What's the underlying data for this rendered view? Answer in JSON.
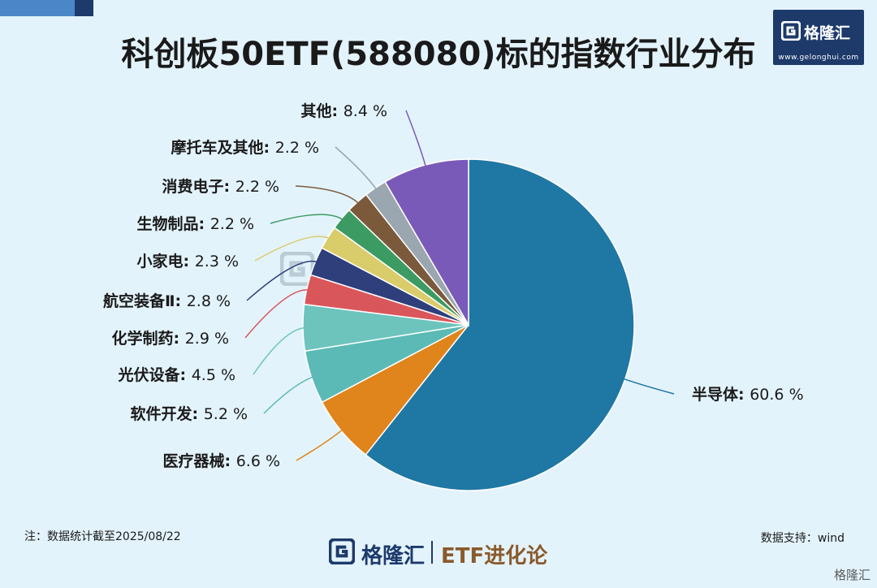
{
  "title": "科创板50ETF(588080)标的指数行业分布",
  "brand": {
    "name": "格隆汇",
    "url": "www.gelonghui.com",
    "series": "ETF进化论",
    "corner": "格隆汇"
  },
  "note": "注：数据统计截至2025/08/22",
  "source": "数据支持：wind",
  "chart_data": {
    "type": "pie",
    "title": "科创板50ETF(588080)标的指数行业分布",
    "unit": "%",
    "start_angle_deg": 0,
    "direction": "clockwise",
    "slices": [
      {
        "label": "半导体",
        "value": 60.6,
        "display": "60.6 %",
        "color": "#1f77a4"
      },
      {
        "label": "医疗器械",
        "value": 6.6,
        "display": "6.6 %",
        "color": "#e0841c"
      },
      {
        "label": "软件开发",
        "value": 5.2,
        "display": "5.2 %",
        "color": "#5bbab5"
      },
      {
        "label": "光伏设备",
        "value": 4.5,
        "display": "4.5 %",
        "color": "#6cc4bd"
      },
      {
        "label": "化学制药",
        "value": 2.9,
        "display": "2.9 %",
        "color": "#d9575b"
      },
      {
        "label": "航空装备Ⅱ",
        "value": 2.8,
        "display": "2.8 %",
        "color": "#2e3f7c"
      },
      {
        "label": "小家电",
        "value": 2.3,
        "display": "2.3 %",
        "color": "#d9cc6a"
      },
      {
        "label": "生物制品",
        "value": 2.2,
        "display": "2.2 %",
        "color": "#3c9b62"
      },
      {
        "label": "消费电子",
        "value": 2.2,
        "display": "2.2 %",
        "color": "#7b5a3c"
      },
      {
        "label": "摩托车及其他",
        "value": 2.2,
        "display": "2.2 %",
        "color": "#9aa6b0"
      },
      {
        "label": "其他",
        "value": 8.4,
        "display": "8.4 %",
        "color": "#7a5ab8"
      }
    ]
  }
}
